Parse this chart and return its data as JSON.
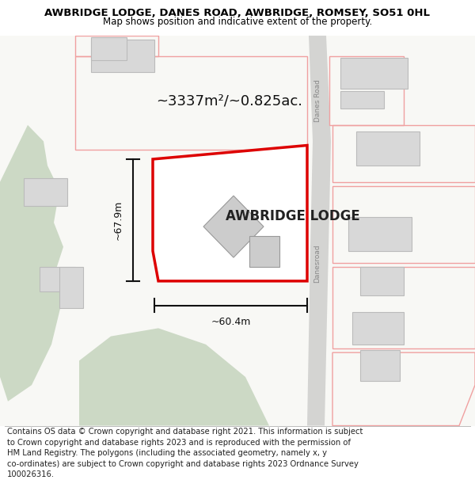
{
  "title_line1": "AWBRIDGE LODGE, DANES ROAD, AWBRIDGE, ROMSEY, SO51 0HL",
  "title_line2": "Map shows position and indicative extent of the property.",
  "area_label": "~3337m²/~0.825ac.",
  "property_label": "AWBRIDGE LODGE",
  "width_label": "~60.4m",
  "height_label": "~67.9m",
  "road_label_top": "Danes Road",
  "road_label_bottom": "Danesroad",
  "map_bg": "#f8f8f5",
  "green_color": "#ccd9c5",
  "road_strip_color": "#d4d4d2",
  "plot_color": "#ffffff",
  "red_outline": "#dd0000",
  "dim_color": "#111111",
  "building_fill": "#d8d8d8",
  "building_edge": "#bbbbbb",
  "parcel_edge": "#f0a0a0",
  "footer_lines": [
    "Contains OS data © Crown copyright and database right 2021. This information is subject",
    "to Crown copyright and database rights 2023 and is reproduced with the permission of",
    "HM Land Registry. The polygons (including the associated geometry, namely x, y",
    "co-ordinates) are subject to Crown copyright and database rights 2023 Ordnance Survey",
    "100026316."
  ],
  "title_fs": 9.5,
  "subtitle_fs": 8.5,
  "footer_fs": 7.2,
  "area_fs": 13,
  "label_fs": 12,
  "dim_fs": 9,
  "road_fs": 6.5
}
